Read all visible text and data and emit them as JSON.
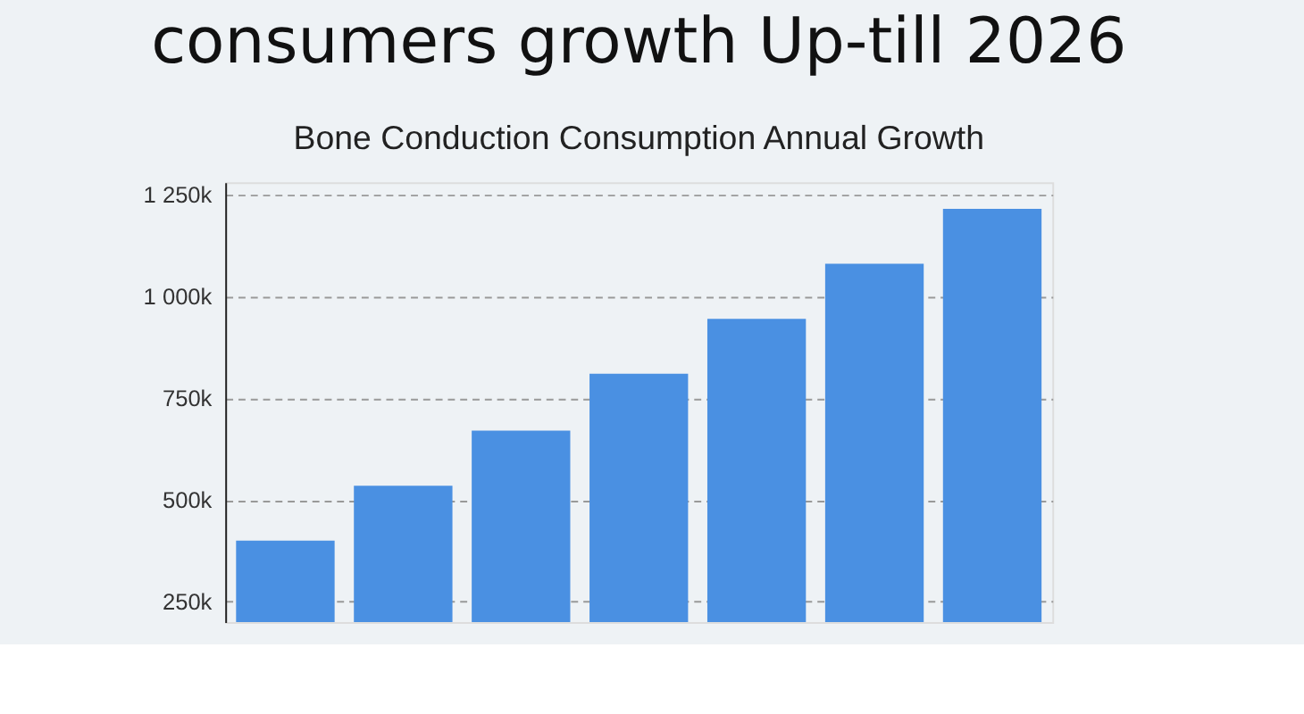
{
  "chart_data": {
    "type": "bar",
    "title": "consumers growth Up-till 2026",
    "subtitle": "Bone Conduction Consumption Annual Growth",
    "categories": [
      null,
      null,
      null,
      null,
      null,
      null,
      null
    ],
    "values": [
      400000,
      535000,
      670000,
      810000,
      945000,
      1080000,
      1215000
    ],
    "color": "#4a90e2",
    "ylim": [
      200000,
      1280000
    ],
    "yticks": [
      {
        "value": 250000,
        "label": "250k"
      },
      {
        "value": 500000,
        "label": "500k"
      },
      {
        "value": 750000,
        "label": "750k"
      },
      {
        "value": 1000000,
        "label": "1 000k"
      },
      {
        "value": 1250000,
        "label": "1 250k"
      }
    ],
    "grid": "y",
    "tick_labels": "y"
  }
}
